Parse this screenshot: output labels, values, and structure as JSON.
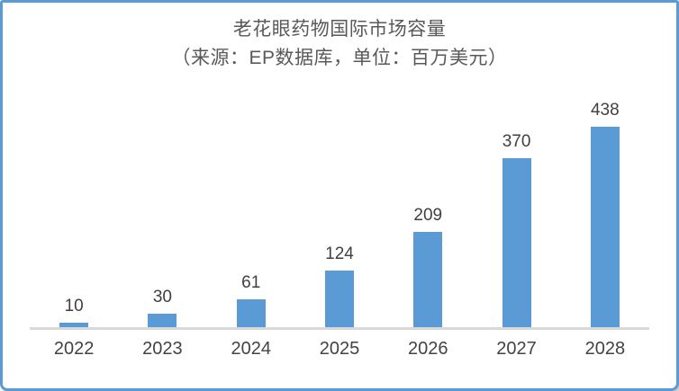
{
  "title": {
    "line1": "老花眼药物国际市场容量",
    "line2": "（来源：EP数据库，单位：百万美元）"
  },
  "chart_data": {
    "type": "bar",
    "categories": [
      "2022",
      "2023",
      "2024",
      "2025",
      "2026",
      "2027",
      "2028"
    ],
    "values": [
      10,
      30,
      61,
      124,
      209,
      370,
      438
    ],
    "title": "老花眼药物国际市场容量",
    "subtitle": "（来源：EP数据库，单位：百万美元）",
    "xlabel": "",
    "ylabel": "",
    "ylim": [
      0,
      460
    ],
    "grid": false,
    "legend_position": "none",
    "data_labels": true,
    "colors": {
      "bar": "#5b9bd5",
      "axis_line": "#d9d9d9",
      "value_label": "#404040",
      "tick_label": "#434343",
      "title": "#595959",
      "card_border": "#5b9bd5"
    }
  }
}
